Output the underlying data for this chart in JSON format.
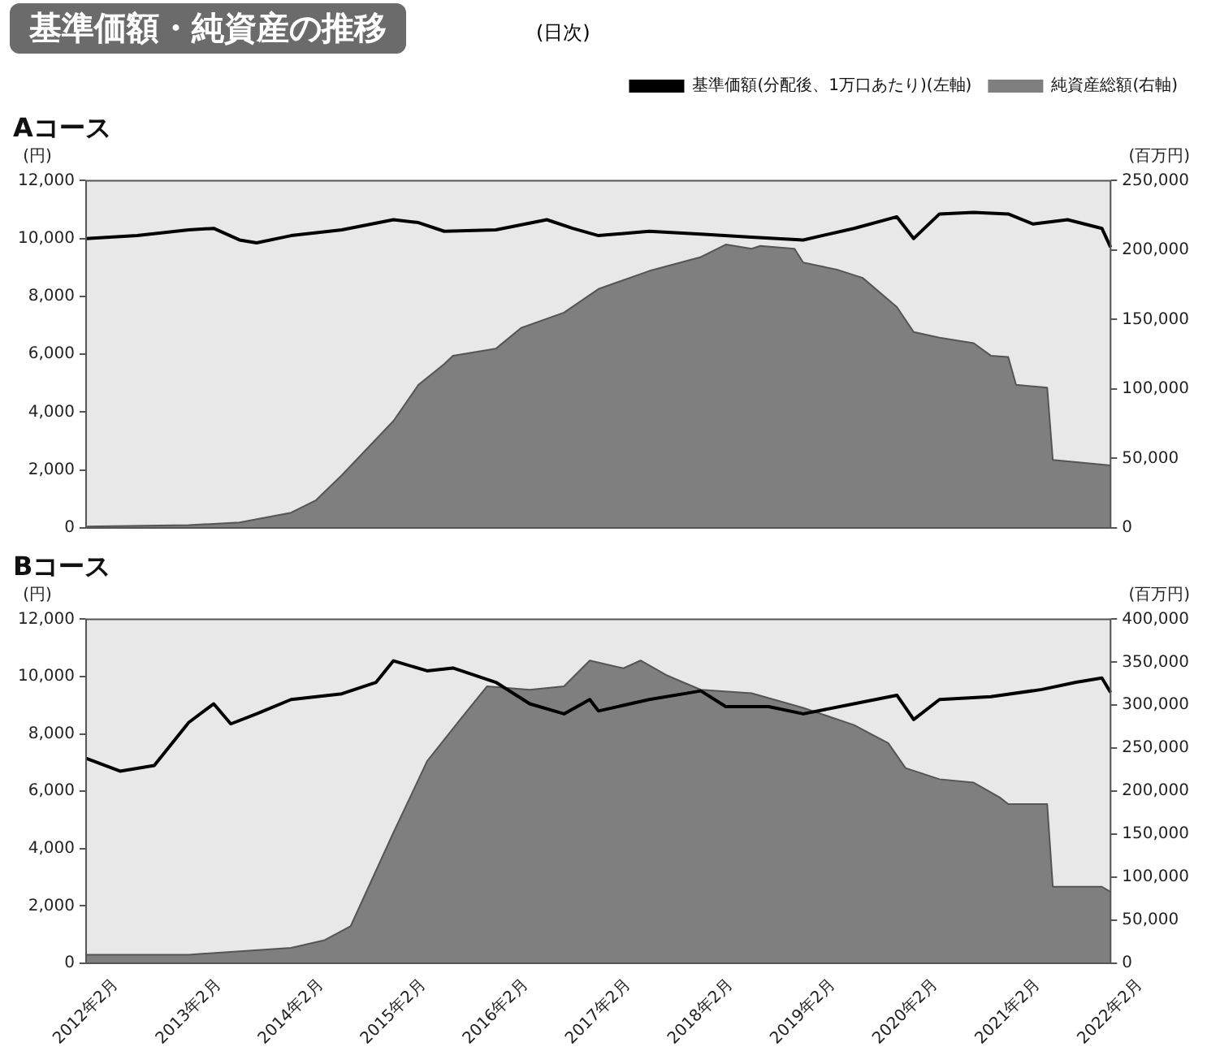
{
  "chart_data": [
    {
      "type": "line",
      "title": "Aコース",
      "ylabel": "(円)",
      "y2label": "(百万円)",
      "annotations": [
        "基準価額・純資産の推移",
        "(日次)"
      ],
      "legend": "top right",
      "tick_labels": "y",
      "grid": false,
      "marker": "none",
      "xlim": [
        "2012-02",
        "2022-02"
      ],
      "xticks": [
        {
          "value": "2012-02",
          "label": null
        },
        {
          "value": "2013-02",
          "label": null
        },
        {
          "value": "2014-02",
          "label": null
        },
        {
          "value": "2015-02",
          "label": null
        },
        {
          "value": "2016-02",
          "label": null
        },
        {
          "value": "2017-02",
          "label": null
        },
        {
          "value": "2018-02",
          "label": null
        },
        {
          "value": "2019-02",
          "label": null
        },
        {
          "value": "2020-02",
          "label": null
        },
        {
          "value": "2021-02",
          "label": null
        },
        {
          "value": "2022-02",
          "label": null
        }
      ],
      "ylim": [
        0,
        12000
      ],
      "yticks": [
        0,
        {
          "value": 2000,
          "label": "2,000"
        },
        {
          "value": 4000,
          "label": "4,000"
        },
        {
          "value": 6000,
          "label": "6,000"
        },
        {
          "value": 8000,
          "label": "8,000"
        },
        {
          "value": 10000,
          "label": "10,000"
        },
        {
          "value": 12000,
          "label": "12,000"
        }
      ],
      "y2lim": [
        0,
        250000
      ],
      "y2ticks": [
        0,
        {
          "value": 50000,
          "label": "50,000"
        },
        {
          "value": 100000,
          "label": "100,000"
        },
        {
          "value": 150000,
          "label": "150,000"
        },
        {
          "value": 200000,
          "label": "200,000"
        },
        {
          "value": 250000,
          "label": "250,000"
        }
      ],
      "series": [
        {
          "name": "純資産総額(右軸)",
          "type": "area",
          "axis": "y2",
          "color": "#7f7f7f",
          "x": [
            "2012-02",
            "2013-02",
            "2013-08",
            "2014-02",
            "2014-05",
            "2014-08",
            "2015-02",
            "2015-05",
            "2015-08",
            "2015-09",
            "2016-02",
            "2016-05",
            "2016-10",
            "2017-02",
            "2017-08",
            "2018-02",
            "2018-05",
            "2018-08",
            "2018-09",
            "2019-01",
            "2019-02",
            "2019-06",
            "2019-09",
            "2020-01",
            "2020-03",
            "2020-06",
            "2020-10",
            "2020-12",
            "2021-02",
            "2021-03",
            "2021-06-20",
            "2021-07-10",
            "2022-02"
          ],
          "values": [
            1000,
            2000,
            4000,
            11000,
            20000,
            38000,
            77000,
            103000,
            118000,
            124000,
            129000,
            144000,
            155000,
            172000,
            185000,
            195000,
            204000,
            201000,
            203000,
            201000,
            191000,
            186000,
            180000,
            159000,
            141000,
            137000,
            133000,
            124000,
            123000,
            103000,
            101000,
            49000,
            45000
          ]
        },
        {
          "name": "基準価額(分配後、1万口あたり)(左軸)",
          "axis": "y",
          "color": "#000000",
          "x": [
            "2012-02",
            "2012-08",
            "2013-02",
            "2013-05",
            "2013-08",
            "2013-10",
            "2014-02",
            "2014-08",
            "2015-02",
            "2015-05",
            "2015-08",
            "2016-02",
            "2016-08",
            "2016-11",
            "2017-02",
            "2017-08",
            "2018-02",
            "2018-08",
            "2019-02",
            "2019-08",
            "2020-01",
            "2020-03",
            "2020-06",
            "2020-10",
            "2021-02",
            "2021-05",
            "2021-09",
            "2022-01",
            "2022-02"
          ],
          "values": [
            10000,
            10100,
            10300,
            10350,
            9950,
            9850,
            10100,
            10300,
            10650,
            10550,
            10250,
            10300,
            10650,
            10350,
            10100,
            10250,
            10150,
            10050,
            9950,
            10350,
            10750,
            10000,
            10850,
            10900,
            10850,
            10500,
            10650,
            10350,
            9700
          ]
        }
      ]
    },
    {
      "type": "line",
      "title": "Bコース",
      "ylabel": "(円)",
      "y2label": "(百万円)",
      "legend": false,
      "grid": false,
      "marker": "none",
      "xlim": [
        "2012-02",
        "2022-02"
      ],
      "xticks": [
        {
          "value": "2012-02",
          "label": "2012年2月"
        },
        {
          "value": "2013-02",
          "label": "2013年2月"
        },
        {
          "value": "2014-02",
          "label": "2014年2月"
        },
        {
          "value": "2015-02",
          "label": "2015年2月"
        },
        {
          "value": "2016-02",
          "label": "2016年2月"
        },
        {
          "value": "2017-02",
          "label": "2017年2月"
        },
        {
          "value": "2018-02",
          "label": "2018年2月"
        },
        {
          "value": "2019-02",
          "label": "2019年2月"
        },
        {
          "value": "2020-02",
          "label": "2020年2月"
        },
        {
          "value": "2021-02",
          "label": "2021年2月"
        },
        {
          "value": "2022-02",
          "label": "2022年2月"
        }
      ],
      "ylim": [
        0,
        12000
      ],
      "yticks": [
        0,
        {
          "value": 2000,
          "label": "2,000"
        },
        {
          "value": 4000,
          "label": "4,000"
        },
        {
          "value": 6000,
          "label": "6,000"
        },
        {
          "value": 8000,
          "label": "8,000"
        },
        {
          "value": 10000,
          "label": "10,000"
        },
        {
          "value": 12000,
          "label": "12,000"
        }
      ],
      "y2lim": [
        0,
        400000
      ],
      "y2ticks": [
        0,
        {
          "value": 50000,
          "label": "50,000"
        },
        {
          "value": 100000,
          "label": "100,000"
        },
        {
          "value": 150000,
          "label": "150,000"
        },
        {
          "value": 200000,
          "label": "200,000"
        },
        {
          "value": 250000,
          "label": "250,000"
        },
        {
          "value": 300000,
          "label": "300,000"
        },
        {
          "value": 350000,
          "label": "350,000"
        },
        {
          "value": 400000,
          "label": "400,000"
        }
      ],
      "series": [
        {
          "type": "area",
          "axis": "y2",
          "color": "#7f7f7f",
          "x": [
            "2012-02",
            "2013-02",
            "2014-02",
            "2014-06",
            "2014-09",
            "2015-02",
            "2015-06",
            "2015-10",
            "2016-01",
            "2016-06",
            "2016-10",
            "2017-01",
            "2017-05",
            "2017-07",
            "2017-10",
            "2018-02",
            "2018-08",
            "2019-02",
            "2019-08",
            "2019-12",
            "2020-02",
            "2020-06",
            "2020-10",
            "2021-01",
            "2021-02",
            "2021-06-20",
            "2021-07-10",
            "2022-01",
            "2022-02"
          ],
          "values": [
            10000,
            10000,
            18000,
            27000,
            43000,
            152000,
            235000,
            285000,
            322000,
            318000,
            322000,
            352000,
            343000,
            352000,
            335000,
            318000,
            314000,
            297000,
            277000,
            256000,
            227000,
            214000,
            210000,
            193000,
            185000,
            185000,
            89000,
            89000,
            83000
          ]
        },
        {
          "axis": "y",
          "color": "#000000",
          "x": [
            "2012-02",
            "2012-06",
            "2012-10",
            "2013-02",
            "2013-05",
            "2013-07",
            "2013-10",
            "2014-02",
            "2014-08",
            "2014-12",
            "2015-02",
            "2015-06",
            "2015-09",
            "2016-02",
            "2016-06",
            "2016-10",
            "2017-01",
            "2017-02",
            "2017-08",
            "2018-02",
            "2018-05",
            "2018-10",
            "2019-02",
            "2019-08",
            "2020-01",
            "2020-03",
            "2020-06",
            "2020-12",
            "2021-06",
            "2021-10",
            "2022-01",
            "2022-02"
          ],
          "values": [
            7150,
            6700,
            6900,
            8400,
            9050,
            8350,
            8700,
            9200,
            9400,
            9800,
            10550,
            10200,
            10300,
            9800,
            9050,
            8700,
            9200,
            8800,
            9200,
            9500,
            8950,
            8950,
            8700,
            9050,
            9350,
            8500,
            9200,
            9300,
            9550,
            9800,
            9950,
            9450
          ]
        }
      ]
    }
  ]
}
